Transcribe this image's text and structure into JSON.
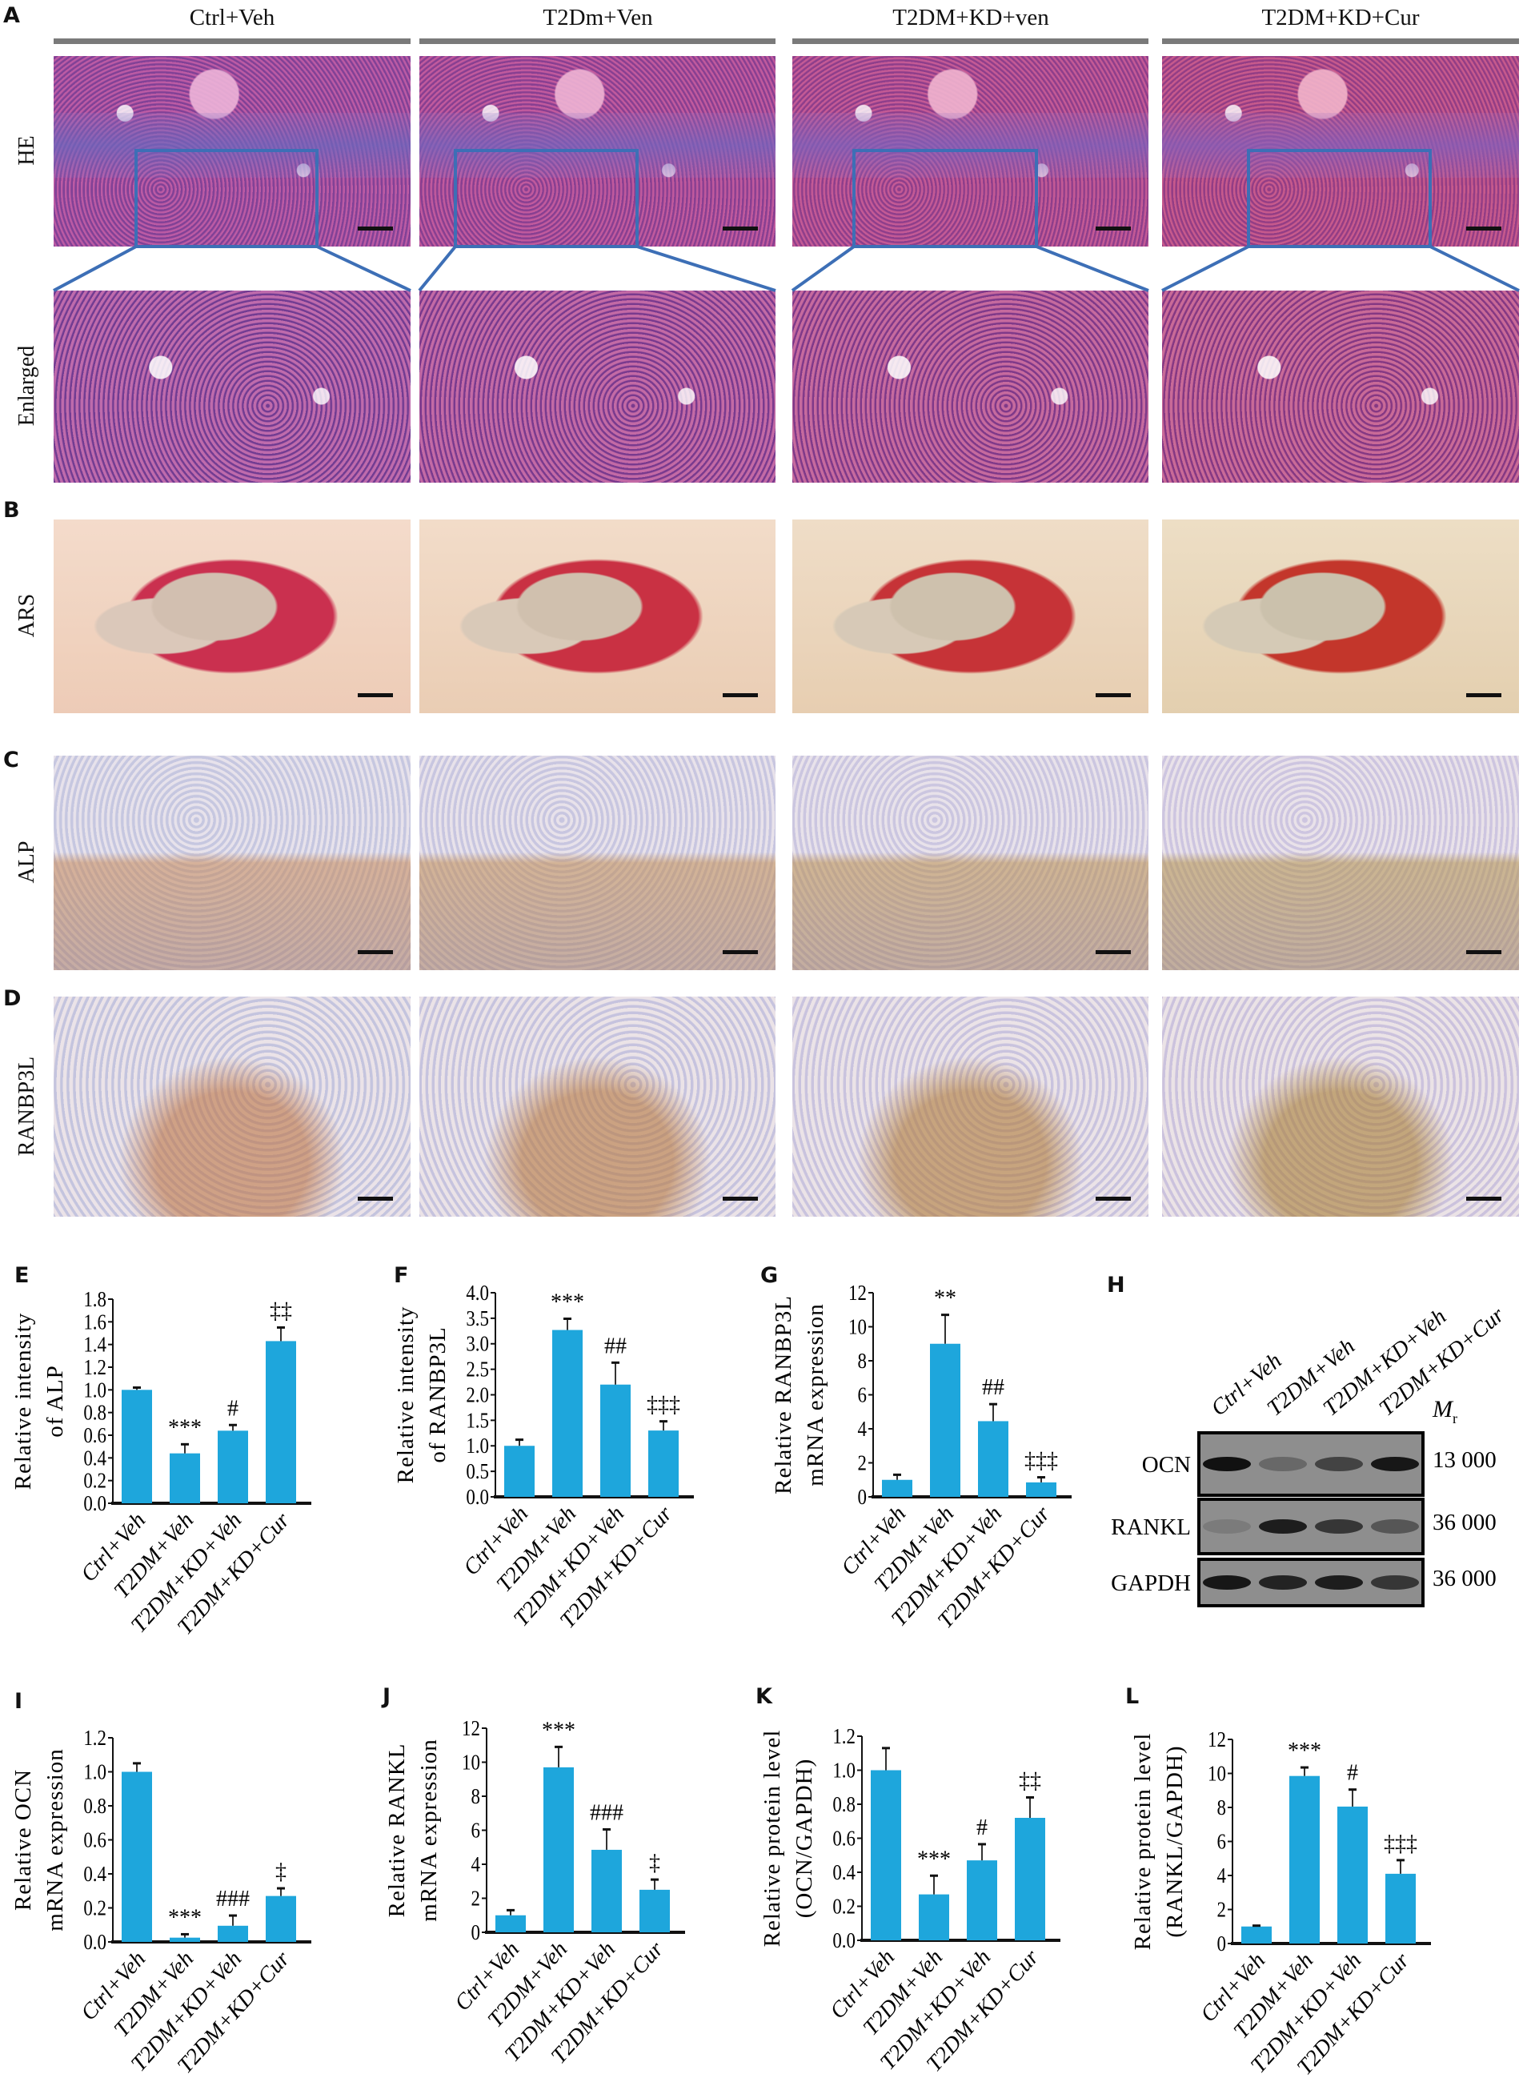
{
  "panel_letters": {
    "A": "A",
    "B": "B",
    "C": "C",
    "D": "D",
    "E": "E",
    "F": "F",
    "G": "G",
    "H": "H",
    "I": "I",
    "J": "J",
    "K": "K",
    "L": "L"
  },
  "histology": {
    "columns": [
      "Ctrl+Veh",
      "T2Dm+Ven",
      "T2DM+KD+ven",
      "T2DM+KD+Cur"
    ],
    "rows": [
      "HE",
      "Enlarged",
      "ARS",
      "ALP",
      "RANBP3L"
    ],
    "highlight_color": "#3d6fb6"
  },
  "blot": {
    "lanes": [
      "Ctrl+Veh",
      "T2DM+Veh",
      "T2DM+KD+Veh",
      "T2DM+KD+Cur"
    ],
    "mr_label": "M",
    "mr_sub": "r",
    "rows": [
      {
        "protein": "OCN",
        "mr": "13 000",
        "band_intensity": [
          1.0,
          0.3,
          0.6,
          0.95
        ]
      },
      {
        "protein": "RANKL",
        "mr": "36 000",
        "band_intensity": [
          0.15,
          0.9,
          0.7,
          0.45
        ]
      },
      {
        "protein": "GAPDH",
        "mr": "36 000",
        "band_intensity": [
          0.95,
          0.85,
          0.9,
          0.7
        ]
      }
    ]
  },
  "colors": {
    "bar": "#1ea6dc",
    "error": "#111111"
  },
  "chart_data": [
    {
      "panel": "E",
      "type": "bar",
      "categories": [
        "Ctrl+Veh",
        "T2DM+Veh",
        "T2DM+KD+Veh",
        "T2DM+KD+Cur"
      ],
      "values": [
        1.0,
        0.44,
        0.64,
        1.43
      ],
      "errors": [
        0.02,
        0.08,
        0.05,
        0.12
      ],
      "annotations": [
        "",
        "***",
        "#",
        "‡‡"
      ],
      "ylabel": [
        "Relative intensity",
        "of ALP"
      ],
      "ylim": [
        0,
        1.8
      ],
      "yticks": [
        "0.0",
        "0.2",
        "0.4",
        "0.6",
        "0.8",
        "1.0",
        "1.2",
        "1.4",
        "1.6",
        "1.8"
      ],
      "grid": false
    },
    {
      "panel": "F",
      "type": "bar",
      "categories": [
        "Ctrl+Veh",
        "T2DM+Veh",
        "T2DM+KD+Veh",
        "T2DM+KD+Cur"
      ],
      "values": [
        1.0,
        3.27,
        2.2,
        1.3
      ],
      "errors": [
        0.12,
        0.22,
        0.43,
        0.18
      ],
      "annotations": [
        "",
        "***",
        "##",
        "‡‡‡"
      ],
      "ylabel": [
        "Relative intensity",
        "of RANBP3L"
      ],
      "ylim": [
        0,
        4.0
      ],
      "yticks": [
        "0.0",
        "0.5",
        "1.0",
        "1.5",
        "2.0",
        "2.5",
        "3.0",
        "3.5",
        "4.0"
      ],
      "grid": false
    },
    {
      "panel": "G",
      "type": "bar",
      "categories": [
        "Ctrl+Veh",
        "T2DM+Veh",
        "T2DM+KD+Veh",
        "T2DM+KD+Cur"
      ],
      "values": [
        1.0,
        9.0,
        4.45,
        0.85
      ],
      "errors": [
        0.3,
        1.7,
        1.0,
        0.3
      ],
      "annotations": [
        "",
        "**",
        "##",
        "‡‡‡"
      ],
      "ylabel": [
        "Relative RANBP3L",
        "mRNA expression"
      ],
      "ylim": [
        0,
        12
      ],
      "yticks": [
        "0",
        "2",
        "4",
        "6",
        "8",
        "10",
        "12"
      ],
      "grid": false
    },
    {
      "panel": "I",
      "type": "bar",
      "categories": [
        "Ctrl+Veh",
        "T2DM+Veh",
        "T2DM+KD+Veh",
        "T2DM+KD+Cur"
      ],
      "values": [
        1.0,
        0.025,
        0.095,
        0.27
      ],
      "errors": [
        0.05,
        0.02,
        0.06,
        0.045
      ],
      "annotations": [
        "",
        "***",
        "###",
        "‡"
      ],
      "ylabel": [
        "Relative OCN",
        "mRNA expression"
      ],
      "ylim": [
        0,
        1.2
      ],
      "yticks": [
        "0.0",
        "0.2",
        "0.4",
        "0.6",
        "0.8",
        "1.0",
        "1.2"
      ],
      "grid": false
    },
    {
      "panel": "J",
      "type": "bar",
      "categories": [
        "Ctrl+Veh",
        "T2DM+Veh",
        "T2DM+KD+Veh",
        "T2DM+KD+Cur"
      ],
      "values": [
        1.0,
        9.7,
        4.85,
        2.5
      ],
      "errors": [
        0.3,
        1.2,
        1.2,
        0.6
      ],
      "annotations": [
        "",
        "***",
        "###",
        "‡"
      ],
      "ylabel": [
        "Relative RANKL",
        "mRNA expression"
      ],
      "ylim": [
        0,
        12
      ],
      "yticks": [
        "0",
        "2",
        "4",
        "6",
        "8",
        "10",
        "12"
      ],
      "grid": false
    },
    {
      "panel": "K",
      "type": "bar",
      "categories": [
        "Ctrl+Veh",
        "T2DM+Veh",
        "T2DM+KD+Veh",
        "T2DM+KD+Cur"
      ],
      "values": [
        1.0,
        0.27,
        0.47,
        0.72
      ],
      "errors": [
        0.13,
        0.11,
        0.095,
        0.12
      ],
      "annotations": [
        "",
        "***",
        "#",
        "‡‡"
      ],
      "ylabel": [
        "Relative protein level",
        "(OCN/GAPDH)"
      ],
      "ylim": [
        0,
        1.2
      ],
      "yticks": [
        "0.0",
        "0.2",
        "0.4",
        "0.6",
        "0.8",
        "1.0",
        "1.2"
      ],
      "grid": false
    },
    {
      "panel": "L",
      "type": "bar",
      "categories": [
        "Ctrl+Veh",
        "T2DM+Veh",
        "T2DM+KD+Veh",
        "T2DM+KD+Cur"
      ],
      "values": [
        1.0,
        9.85,
        8.05,
        4.1
      ],
      "errors": [
        0.05,
        0.5,
        1.0,
        0.8
      ],
      "annotations": [
        "",
        "***",
        "#",
        "‡‡‡"
      ],
      "ylabel": [
        "Relative protein level",
        "(RANKL/GAPDH)"
      ],
      "ylim": [
        0,
        12
      ],
      "yticks": [
        "0",
        "2",
        "4",
        "6",
        "8",
        "10",
        "12"
      ],
      "grid": false
    }
  ]
}
